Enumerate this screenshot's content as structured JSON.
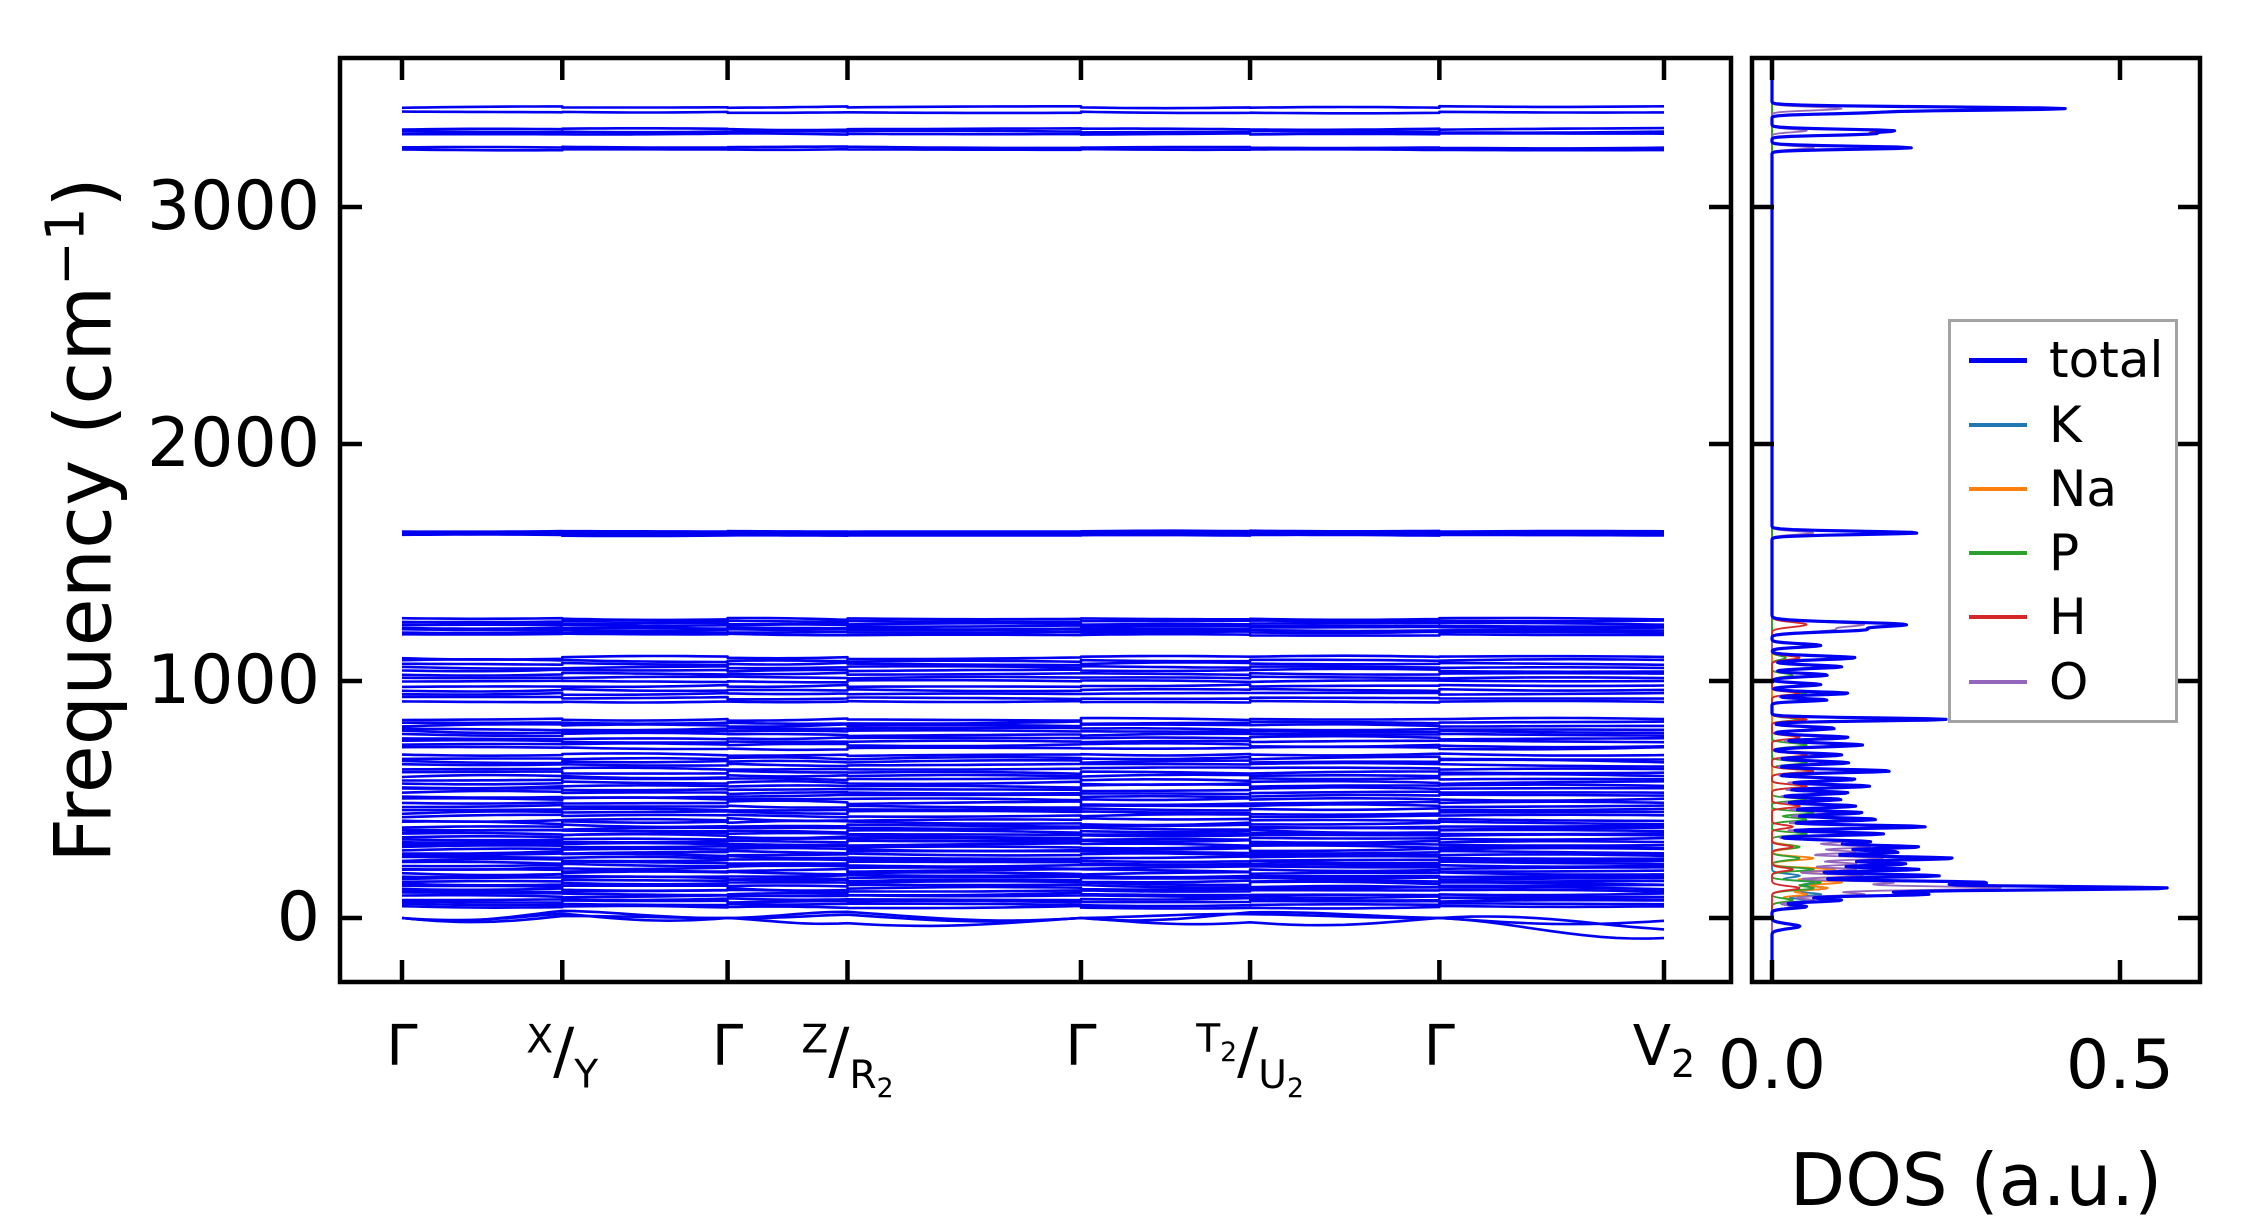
{
  "chart_data": {
    "type": "line",
    "description": "Phonon band structure (left) with element-projected phonon density of states (right)",
    "band_panel": {
      "ylabel_prefix": "Frequency (cm",
      "ylabel_sup": "−1",
      "ylabel_suffix": ")",
      "ytick_labels": [
        "0",
        "1000",
        "2000",
        "3000"
      ],
      "ytick_values": [
        0,
        1000,
        2000,
        3000
      ],
      "ylim": [
        -270,
        3630
      ],
      "kpath_labels": [
        "Γ",
        "^X/_Y",
        "Γ",
        "^Z/_R2",
        "Γ",
        "^T2/_U2",
        "Γ",
        "V2"
      ],
      "kpath_positions": [
        0,
        0.127,
        0.258,
        0.353,
        0.538,
        0.672,
        0.822,
        1.0
      ],
      "band_color": "#0000f0",
      "bands": [
        [
          3422,
          7
        ],
        [
          3400,
          6
        ],
        [
          3330,
          8
        ],
        [
          3318,
          7
        ],
        [
          3308,
          6
        ],
        [
          3252,
          6
        ],
        [
          3242,
          5
        ],
        [
          1632,
          5
        ],
        [
          1626,
          4
        ],
        [
          1620,
          4
        ],
        [
          1615,
          4
        ],
        [
          1262,
          9
        ],
        [
          1252,
          8
        ],
        [
          1242,
          9
        ],
        [
          1233,
          8
        ],
        [
          1224,
          9
        ],
        [
          1215,
          8
        ],
        [
          1205,
          9
        ],
        [
          1196,
          8
        ],
        [
          1098,
          11
        ],
        [
          1085,
          10
        ],
        [
          1072,
          11
        ],
        [
          1058,
          10
        ],
        [
          1045,
          11
        ],
        [
          1030,
          10
        ],
        [
          1015,
          10
        ],
        [
          998,
          9
        ],
        [
          980,
          10
        ],
        [
          962,
          10
        ],
        [
          945,
          9
        ],
        [
          928,
          10
        ],
        [
          912,
          9
        ],
        [
          838,
          12
        ],
        [
          825,
          11
        ],
        [
          812,
          12
        ],
        [
          798,
          11
        ],
        [
          785,
          12
        ],
        [
          772,
          11
        ],
        [
          758,
          12
        ],
        [
          745,
          11
        ],
        [
          730,
          12
        ],
        [
          716,
          11
        ],
        [
          690,
          14
        ],
        [
          675,
          13
        ],
        [
          660,
          14
        ],
        [
          645,
          13
        ],
        [
          630,
          14
        ],
        [
          615,
          13
        ],
        [
          600,
          14
        ],
        [
          585,
          13
        ],
        [
          570,
          14
        ],
        [
          556,
          13
        ],
        [
          542,
          14
        ],
        [
          528,
          13
        ],
        [
          514,
          14
        ],
        [
          500,
          13
        ],
        [
          486,
          14
        ],
        [
          472,
          13
        ],
        [
          458,
          14
        ],
        [
          444,
          13
        ],
        [
          430,
          14
        ],
        [
          416,
          13
        ],
        [
          402,
          14
        ],
        [
          388,
          13
        ],
        [
          377,
          12
        ],
        [
          366,
          13
        ],
        [
          355,
          12
        ],
        [
          344,
          13
        ],
        [
          333,
          12
        ],
        [
          322,
          13
        ],
        [
          311,
          12
        ],
        [
          300,
          13
        ],
        [
          289,
          12
        ],
        [
          278,
          13
        ],
        [
          267,
          12
        ],
        [
          256,
          13
        ],
        [
          245,
          12
        ],
        [
          234,
          13
        ],
        [
          223,
          12
        ],
        [
          212,
          13
        ],
        [
          201,
          12
        ],
        [
          190,
          13
        ],
        [
          179,
          12
        ],
        [
          168,
          13
        ],
        [
          157,
          12
        ],
        [
          146,
          13
        ],
        [
          135,
          12
        ],
        [
          124,
          13
        ],
        [
          113,
          12
        ],
        [
          102,
          13
        ],
        [
          91,
          12
        ],
        [
          80,
          11
        ],
        [
          69,
          11
        ],
        [
          58,
          10
        ],
        [
          47,
          10
        ]
      ],
      "acoustic_bands": [
        [
          0,
          30,
          0,
          26,
          0,
          24,
          0,
          -12
        ],
        [
          0,
          18,
          0,
          14,
          0,
          16,
          0,
          -48
        ],
        [
          0,
          8,
          0,
          -22,
          0,
          -18,
          0,
          -85
        ]
      ]
    },
    "dos_panel": {
      "xlabel": "DOS (a.u.)",
      "xtick_labels": [
        "0.0",
        "0.5"
      ],
      "xtick_values": [
        0,
        0.5
      ],
      "xlim": [
        -0.03,
        0.615
      ],
      "series": [
        {
          "name": "total",
          "color": "#0000f0",
          "peaks": [
            [
              3415,
              0.42,
              10
            ],
            [
              3398,
              0.12,
              8
            ],
            [
              3322,
              0.17,
              9
            ],
            [
              3308,
              0.13,
              8
            ],
            [
              3250,
              0.2,
              9
            ],
            [
              1625,
              0.21,
              10
            ],
            [
              1238,
              0.19,
              14
            ],
            [
              1215,
              0.12,
              12
            ],
            [
              1150,
              0.07,
              10
            ],
            [
              1098,
              0.12,
              11
            ],
            [
              1060,
              0.1,
              10
            ],
            [
              1025,
              0.08,
              10
            ],
            [
              985,
              0.07,
              9
            ],
            [
              948,
              0.11,
              9
            ],
            [
              920,
              0.08,
              8
            ],
            [
              838,
              0.25,
              9
            ],
            [
              800,
              0.09,
              10
            ],
            [
              762,
              0.11,
              10
            ],
            [
              730,
              0.13,
              11
            ],
            [
              688,
              0.1,
              10
            ],
            [
              655,
              0.11,
              10
            ],
            [
              620,
              0.17,
              10
            ],
            [
              585,
              0.12,
              10
            ],
            [
              556,
              0.14,
              10
            ],
            [
              528,
              0.11,
              9
            ],
            [
              500,
              0.1,
              9
            ],
            [
              472,
              0.12,
              10
            ],
            [
              444,
              0.13,
              10
            ],
            [
              416,
              0.15,
              10
            ],
            [
              385,
              0.22,
              10
            ],
            [
              355,
              0.16,
              9
            ],
            [
              322,
              0.14,
              10
            ],
            [
              300,
              0.21,
              10
            ],
            [
              278,
              0.18,
              10
            ],
            [
              252,
              0.26,
              11
            ],
            [
              228,
              0.19,
              10
            ],
            [
              205,
              0.21,
              10
            ],
            [
              178,
              0.24,
              10
            ],
            [
              150,
              0.3,
              10
            ],
            [
              126,
              0.57,
              12
            ],
            [
              100,
              0.22,
              10
            ],
            [
              75,
              0.1,
              10
            ],
            [
              48,
              0.05,
              10
            ],
            [
              -35,
              0.04,
              14
            ]
          ]
        },
        {
          "name": "K",
          "color": "#1f77b4",
          "peaks": [
            [
              178,
              0.04,
              11
            ],
            [
              150,
              0.06,
              10
            ],
            [
              126,
              0.08,
              12
            ],
            [
              100,
              0.07,
              10
            ],
            [
              75,
              0.05,
              10
            ],
            [
              48,
              0.03,
              10
            ]
          ]
        },
        {
          "name": "Na",
          "color": "#ff7f0e",
          "peaks": [
            [
              300,
              0.04,
              12
            ],
            [
              252,
              0.06,
              11
            ],
            [
              205,
              0.09,
              10
            ],
            [
              178,
              0.13,
              11
            ],
            [
              150,
              0.1,
              10
            ],
            [
              126,
              0.08,
              12
            ],
            [
              100,
              0.05,
              10
            ],
            [
              75,
              0.03,
              10
            ]
          ]
        },
        {
          "name": "P",
          "color": "#2ca02c",
          "peaks": [
            [
              1098,
              0.02,
              11
            ],
            [
              1025,
              0.03,
              10
            ],
            [
              948,
              0.05,
              9
            ],
            [
              838,
              0.04,
              9
            ],
            [
              730,
              0.05,
              11
            ],
            [
              655,
              0.05,
              10
            ],
            [
              620,
              0.06,
              10
            ],
            [
              556,
              0.05,
              10
            ],
            [
              500,
              0.05,
              9
            ],
            [
              444,
              0.06,
              10
            ],
            [
              416,
              0.05,
              10
            ],
            [
              355,
              0.05,
              9
            ],
            [
              300,
              0.04,
              10
            ],
            [
              252,
              0.04,
              11
            ],
            [
              205,
              0.06,
              10
            ],
            [
              150,
              0.07,
              10
            ],
            [
              126,
              0.06,
              12
            ],
            [
              75,
              0.03,
              10
            ]
          ]
        },
        {
          "name": "H",
          "color": "#d62728",
          "peaks": [
            [
              3415,
              0.4,
              10
            ],
            [
              3398,
              0.11,
              8
            ],
            [
              3322,
              0.16,
              9
            ],
            [
              3308,
              0.12,
              8
            ],
            [
              3250,
              0.19,
              9
            ],
            [
              1625,
              0.19,
              10
            ],
            [
              1238,
              0.05,
              14
            ],
            [
              1098,
              0.04,
              11
            ],
            [
              948,
              0.04,
              9
            ],
            [
              838,
              0.05,
              9
            ],
            [
              762,
              0.04,
              10
            ],
            [
              688,
              0.05,
              10
            ],
            [
              620,
              0.06,
              10
            ],
            [
              556,
              0.05,
              10
            ],
            [
              472,
              0.04,
              10
            ],
            [
              385,
              0.03,
              10
            ],
            [
              300,
              0.03,
              10
            ],
            [
              205,
              0.03,
              10
            ],
            [
              126,
              0.04,
              12
            ]
          ]
        },
        {
          "name": "O",
          "color": "#9467bd",
          "peaks": [
            [
              3415,
              0.1,
              10
            ],
            [
              3322,
              0.05,
              9
            ],
            [
              3250,
              0.06,
              9
            ],
            [
              1625,
              0.06,
              10
            ],
            [
              1238,
              0.13,
              14
            ],
            [
              1215,
              0.08,
              12
            ],
            [
              1098,
              0.09,
              11
            ],
            [
              1060,
              0.07,
              10
            ],
            [
              1025,
              0.06,
              10
            ],
            [
              985,
              0.05,
              9
            ],
            [
              948,
              0.08,
              9
            ],
            [
              920,
              0.06,
              8
            ],
            [
              838,
              0.19,
              9
            ],
            [
              800,
              0.07,
              10
            ],
            [
              762,
              0.08,
              10
            ],
            [
              730,
              0.1,
              11
            ],
            [
              688,
              0.07,
              10
            ],
            [
              655,
              0.08,
              10
            ],
            [
              620,
              0.12,
              10
            ],
            [
              585,
              0.09,
              10
            ],
            [
              556,
              0.1,
              10
            ],
            [
              528,
              0.08,
              9
            ],
            [
              500,
              0.07,
              9
            ],
            [
              472,
              0.09,
              10
            ],
            [
              444,
              0.09,
              10
            ],
            [
              416,
              0.11,
              10
            ],
            [
              385,
              0.16,
              10
            ],
            [
              355,
              0.11,
              9
            ],
            [
              322,
              0.1,
              10
            ],
            [
              300,
              0.14,
              10
            ],
            [
              278,
              0.12,
              10
            ],
            [
              252,
              0.16,
              11
            ],
            [
              228,
              0.12,
              10
            ],
            [
              205,
              0.12,
              10
            ],
            [
              178,
              0.13,
              10
            ],
            [
              150,
              0.17,
              10
            ],
            [
              126,
              0.33,
              12
            ],
            [
              100,
              0.13,
              10
            ],
            [
              75,
              0.06,
              10
            ],
            [
              48,
              0.03,
              10
            ]
          ]
        }
      ],
      "legend_items": [
        "total",
        "K",
        "Na",
        "P",
        "H",
        "O"
      ]
    }
  }
}
